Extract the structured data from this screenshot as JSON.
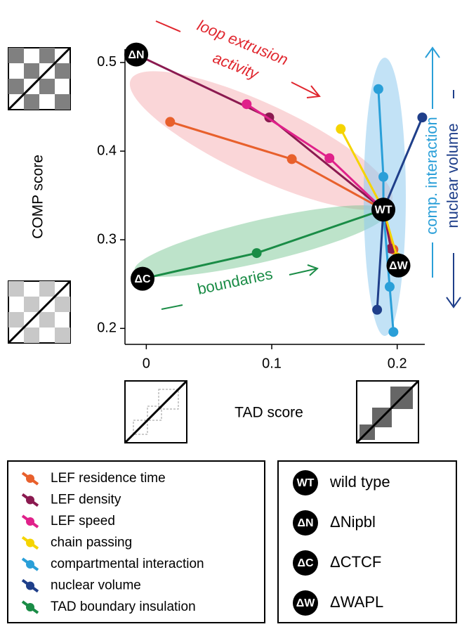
{
  "chart_data": {
    "type": "line",
    "xlabel": "TAD score",
    "ylabel": "COMP score",
    "xlim": [
      -0.017,
      0.222
    ],
    "ylim": [
      0.182,
      0.515
    ],
    "xticks": [
      0,
      0.1,
      0.2
    ],
    "yticks": [
      0.2,
      0.3,
      0.4,
      0.5
    ],
    "series": [
      {
        "name": "LEF residence time",
        "color": "#e8602c",
        "x": [
          0.019,
          0.116,
          0.189,
          0.197
        ],
        "values": [
          0.433,
          0.391,
          0.334,
          0.289
        ]
      },
      {
        "name": "LEF density",
        "color": "#8b1a50",
        "x": [
          -0.008,
          0.098,
          0.189,
          0.195
        ],
        "values": [
          0.509,
          0.438,
          0.334,
          0.29
        ]
      },
      {
        "name": "LEF speed",
        "color": "#e0218a",
        "x": [
          0.08,
          0.146,
          0.189
        ],
        "values": [
          0.453,
          0.392,
          0.334
        ]
      },
      {
        "name": "chain passing",
        "color": "#f5d400",
        "x": [
          0.155,
          0.189,
          0.2
        ],
        "values": [
          0.425,
          0.334,
          0.28
        ]
      },
      {
        "name": "compartmental interaction",
        "color": "#2a9fd8",
        "x": [
          0.185,
          0.189,
          0.189,
          0.194,
          0.197
        ],
        "values": [
          0.47,
          0.371,
          0.334,
          0.247,
          0.196
        ]
      },
      {
        "name": "nuclear volume",
        "color": "#1f3f8a",
        "x": [
          0.22,
          0.189,
          0.184
        ],
        "values": [
          0.438,
          0.334,
          0.221
        ]
      },
      {
        "name": "TAD boundary insulation",
        "color": "#1a8c46",
        "x": [
          -0.003,
          0.088,
          0.189
        ],
        "values": [
          0.256,
          0.285,
          0.334
        ]
      }
    ],
    "markers": [
      {
        "label": "WT",
        "x": 0.189,
        "y": 0.334
      },
      {
        "label": "ΔN",
        "x": -0.008,
        "y": 0.509
      },
      {
        "label": "ΔC",
        "x": -0.003,
        "y": 0.256
      },
      {
        "label": "ΔW",
        "x": 0.201,
        "y": 0.271
      }
    ],
    "annotations": [
      "loop extrusion",
      "activity",
      "boundaries",
      "comp. interaction",
      "nuclear volume"
    ],
    "condition_legend": [
      {
        "symbol": "WT",
        "label": "wild type"
      },
      {
        "symbol": "ΔN",
        "label": "ΔNipbl"
      },
      {
        "symbol": "ΔC",
        "label": "ΔCTCF"
      },
      {
        "symbol": "ΔW",
        "label": "ΔWAPL"
      }
    ]
  }
}
